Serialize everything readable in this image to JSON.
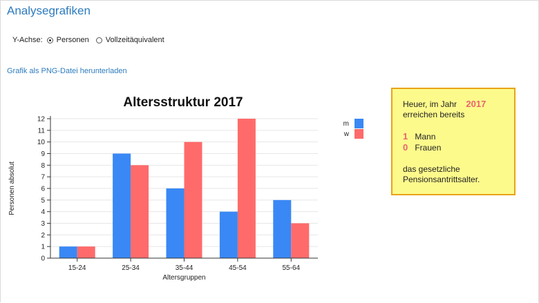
{
  "page": {
    "title": "Analysegrafiken"
  },
  "yaxis_choice": {
    "label": "Y-Achse:",
    "options": [
      "Personen",
      "Vollzeitäquivalent"
    ],
    "selected": "Personen"
  },
  "download_link": "Grafik als PNG-Datei herunterladen",
  "info_box": {
    "line1": "Heuer, im Jahr",
    "year": "2017",
    "line2": "erreichen bereits",
    "men_count": "1",
    "men_label": "Mann",
    "women_count": "0",
    "women_label": "Frauen",
    "line3": "das gesetzliche",
    "line4": "Pensionsantrittsalter."
  },
  "colors": {
    "m": "#3a88f5",
    "w": "#ff6b6b",
    "title_link": "#2c7bbd",
    "accent_number": "#e8646d",
    "box_fill": "#fdfa8c",
    "box_border": "#e8a317"
  },
  "chart_data": {
    "type": "bar",
    "title": "Altersstruktur 2017",
    "xlabel": "Altersgruppen",
    "ylabel": "Personen absolut",
    "categories": [
      "15-24",
      "25-34",
      "35-44",
      "45-54",
      "55-64"
    ],
    "series": [
      {
        "name": "m",
        "color": "#3a88f5",
        "values": [
          1,
          9,
          6,
          4,
          5
        ]
      },
      {
        "name": "w",
        "color": "#ff6b6b",
        "values": [
          1,
          8,
          10,
          12,
          3
        ]
      }
    ],
    "ylim": [
      0,
      12
    ],
    "yticks": [
      0,
      1,
      2,
      3,
      4,
      5,
      6,
      7,
      8,
      9,
      10,
      11,
      12
    ],
    "grid": true,
    "legend_position": "top-right"
  }
}
